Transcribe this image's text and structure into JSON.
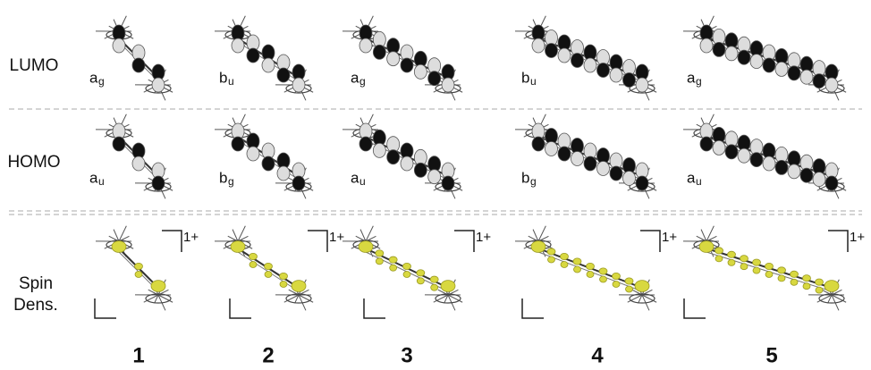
{
  "rows": [
    {
      "label": "LUMO",
      "symmetry": [
        {
          "letter": "a",
          "subscript": "g"
        },
        {
          "letter": "b",
          "subscript": "u"
        },
        {
          "letter": "a",
          "subscript": "g"
        },
        {
          "letter": "b",
          "subscript": "u"
        },
        {
          "letter": "a",
          "subscript": "g"
        }
      ]
    },
    {
      "label": "HOMO",
      "symmetry": [
        {
          "letter": "a",
          "subscript": "u"
        },
        {
          "letter": "b",
          "subscript": "g"
        },
        {
          "letter": "a",
          "subscript": "u"
        },
        {
          "letter": "b",
          "subscript": "g"
        },
        {
          "letter": "a",
          "subscript": "u"
        }
      ]
    },
    {
      "label_lines": [
        "Spin",
        "Dens."
      ],
      "charges": [
        "1+",
        "1+",
        "1+",
        "1+",
        "1+"
      ]
    }
  ],
  "compounds": [
    "1",
    "2",
    "3",
    "4",
    "5"
  ]
}
